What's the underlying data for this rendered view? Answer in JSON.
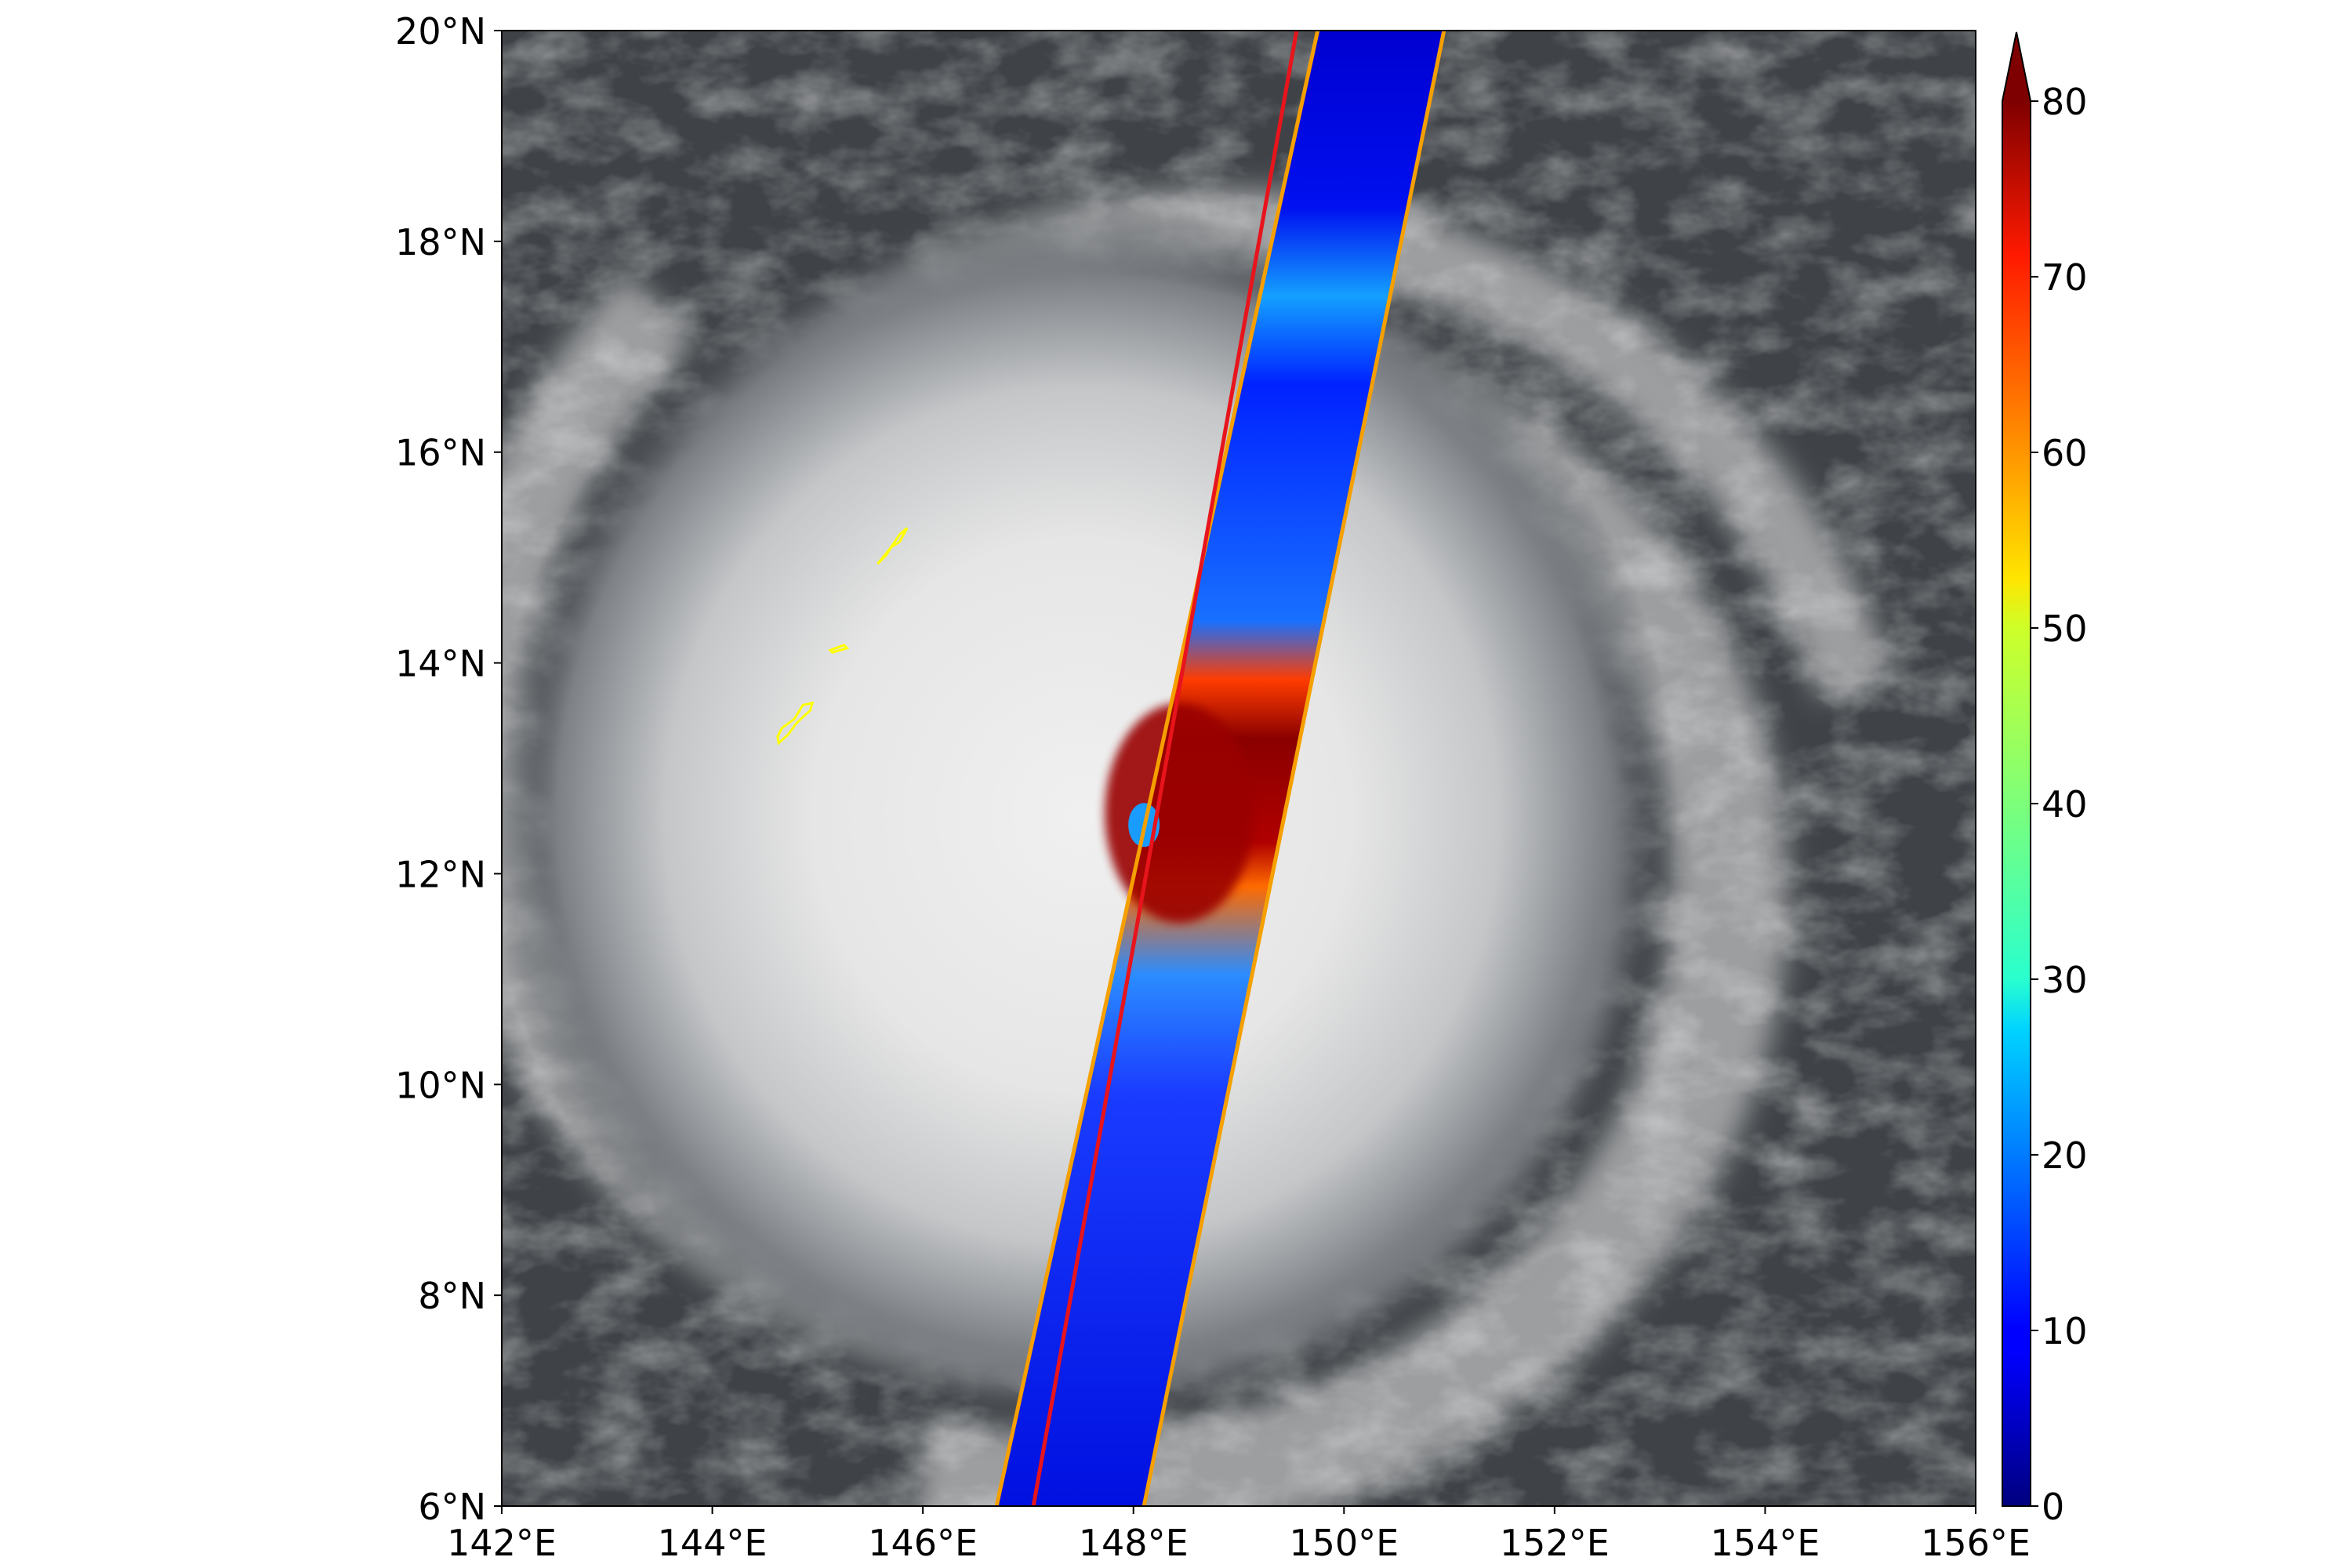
{
  "map": {
    "lon_range": [
      142,
      156
    ],
    "lat_range": [
      6,
      20
    ],
    "x_ticks": [
      {
        "value": 142,
        "label": "142°E"
      },
      {
        "value": 144,
        "label": "144°E"
      },
      {
        "value": 146,
        "label": "146°E"
      },
      {
        "value": 148,
        "label": "148°E"
      },
      {
        "value": 150,
        "label": "150°E"
      },
      {
        "value": 152,
        "label": "152°E"
      },
      {
        "value": 154,
        "label": "154°E"
      },
      {
        "value": 156,
        "label": "156°E"
      }
    ],
    "y_ticks": [
      {
        "value": 6,
        "label": "6°N"
      },
      {
        "value": 8,
        "label": "8°N"
      },
      {
        "value": 10,
        "label": "10°N"
      },
      {
        "value": 12,
        "label": "12°N"
      },
      {
        "value": 14,
        "label": "14°N"
      },
      {
        "value": 16,
        "label": "16°N"
      },
      {
        "value": 18,
        "label": "18°N"
      },
      {
        "value": 20,
        "label": "20°N"
      }
    ],
    "storm_center": {
      "lon": 148.1,
      "lat": 12.5
    },
    "swath": {
      "south_lon_range": [
        146.7,
        148.1
      ],
      "north_lon_range": [
        149.75,
        150.95
      ],
      "center_south_lon": 147.05,
      "center_north_lon": 149.55,
      "edge_color": "#f5a000",
      "center_color": "#e8141c"
    },
    "island_outline_color": "#ffff00",
    "colors": {
      "ocean": "#3f4347",
      "cloud": "#eaeaea"
    }
  },
  "colorbar": {
    "min": 0,
    "max": 80,
    "extend": "max",
    "colormap": "jet",
    "ticks": [
      {
        "value": 0,
        "label": "0"
      },
      {
        "value": 10,
        "label": "10"
      },
      {
        "value": 20,
        "label": "20"
      },
      {
        "value": 30,
        "label": "30"
      },
      {
        "value": 40,
        "label": "40"
      },
      {
        "value": 50,
        "label": "50"
      },
      {
        "value": 60,
        "label": "60"
      },
      {
        "value": 70,
        "label": "70"
      },
      {
        "value": 80,
        "label": "80"
      }
    ]
  }
}
